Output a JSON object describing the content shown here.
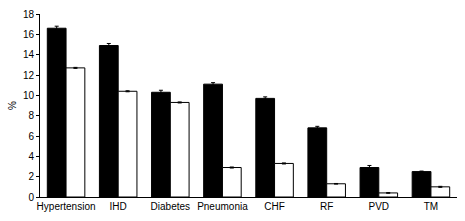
{
  "chart_data": {
    "type": "bar",
    "y_label": "%",
    "categories": [
      "Hypertension",
      "IHD",
      "Diabetes",
      "Pneumonia",
      "CHF",
      "RF",
      "PVD",
      "TM"
    ],
    "series": [
      {
        "color": "#000000",
        "values": [
          16.6,
          14.9,
          10.3,
          11.1,
          9.7,
          6.8,
          2.9,
          2.5
        ],
        "errors": [
          0.2,
          0.2,
          0.2,
          0.15,
          0.15,
          0.15,
          0.2,
          0.05
        ]
      },
      {
        "color": "#ffffff",
        "values": [
          12.7,
          10.4,
          9.3,
          2.9,
          3.3,
          1.3,
          0.4,
          1.0
        ],
        "errors": [
          0.05,
          0.05,
          0.05,
          0.05,
          0.05,
          0.03,
          0.03,
          0.05
        ]
      }
    ],
    "ylim": [
      0,
      18
    ],
    "yticks": [
      0,
      2,
      4,
      6,
      8,
      10,
      12,
      14,
      16,
      18
    ],
    "grid": false
  }
}
